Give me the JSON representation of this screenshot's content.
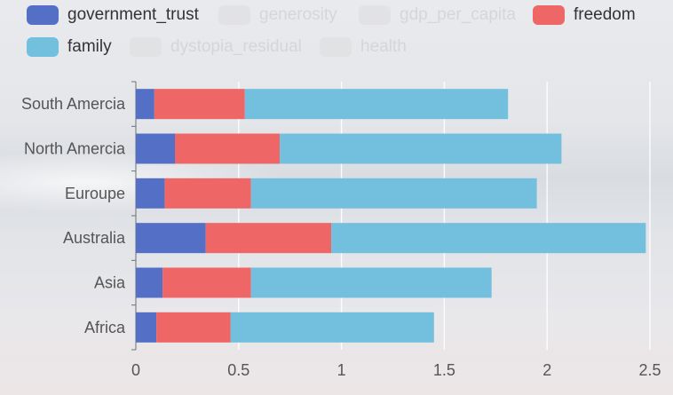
{
  "legend": {
    "items": [
      {
        "label": "government_trust",
        "color": "#5470c6",
        "active": true
      },
      {
        "label": "generosity",
        "color": "#d6d6d6",
        "active": false
      },
      {
        "label": "gdp_per_capita",
        "color": "#d6d6d6",
        "active": false
      },
      {
        "label": "freedom",
        "color": "#ee6666",
        "active": true
      },
      {
        "label": "family",
        "color": "#73c0de",
        "active": true
      },
      {
        "label": "dystopia_residual",
        "color": "#d6d6d6",
        "active": false
      },
      {
        "label": "health",
        "color": "#d6d6d6",
        "active": false
      }
    ]
  },
  "chart_data": {
    "type": "bar",
    "orientation": "horizontal",
    "stacked": true,
    "categories": [
      "Africa",
      "Asia",
      "Australia",
      "Euroupe",
      "North Amercia",
      "South Amercia"
    ],
    "series": [
      {
        "name": "government_trust",
        "color": "#5470c6",
        "values": [
          0.1,
          0.13,
          0.34,
          0.14,
          0.19,
          0.09
        ]
      },
      {
        "name": "freedom",
        "color": "#ee6666",
        "values": [
          0.36,
          0.43,
          0.61,
          0.42,
          0.51,
          0.44
        ]
      },
      {
        "name": "family",
        "color": "#73c0de",
        "values": [
          0.99,
          1.17,
          1.53,
          1.39,
          1.37,
          1.28
        ]
      }
    ],
    "xlim": [
      0,
      2.5
    ],
    "xticks": [
      "0",
      "0.5",
      "1",
      "1.5",
      "2",
      "2.5"
    ],
    "grid": true
  }
}
